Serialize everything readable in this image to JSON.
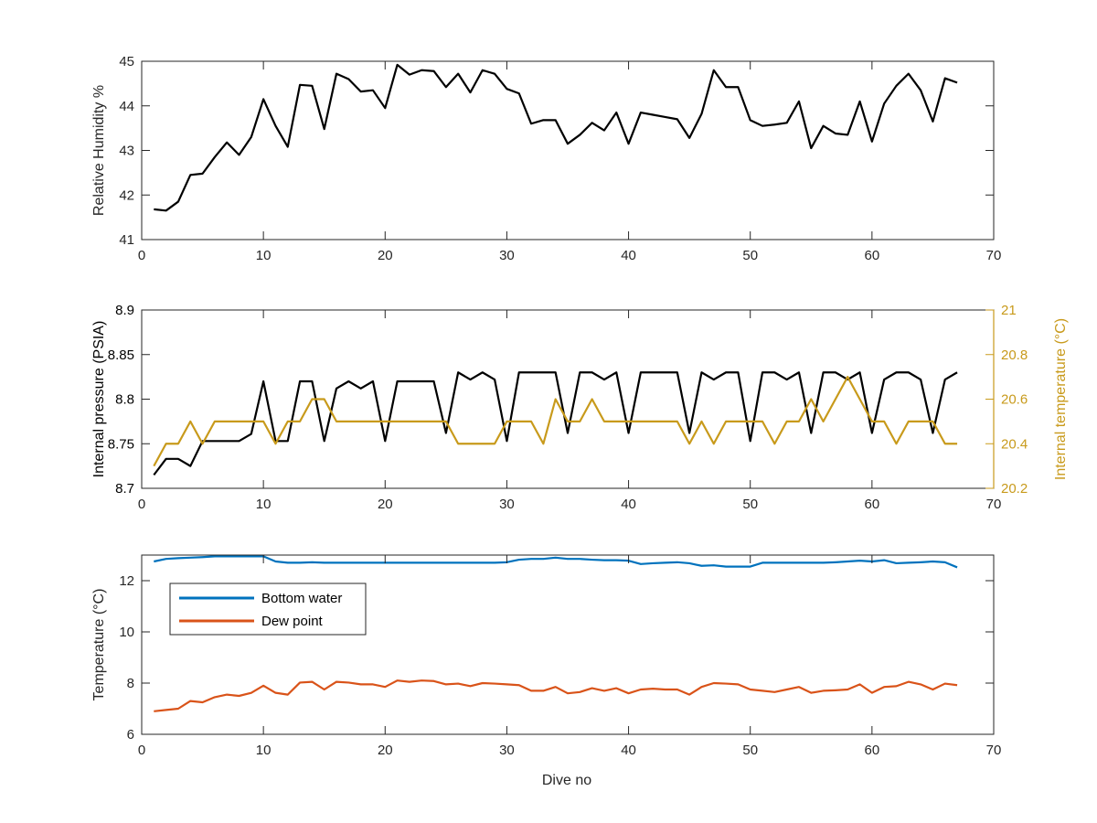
{
  "figure": {
    "xlabel": "Dive no",
    "colors": {
      "axis": "#262626",
      "black": "#000000",
      "gold": "#C89A1B",
      "blue": "#0072BD",
      "orange": "#D95319",
      "tick_text": "#262626"
    }
  },
  "chart_data": [
    {
      "type": "line",
      "ylabel": "Relative Humidity %",
      "xlim": [
        0,
        70
      ],
      "ylim": [
        41,
        45
      ],
      "xticks": [
        0,
        10,
        20,
        30,
        40,
        50,
        60,
        70
      ],
      "yticks": [
        41,
        42,
        43,
        44,
        45
      ],
      "series": [
        {
          "color": "#000000",
          "x": [
            1,
            2,
            3,
            4,
            5,
            6,
            7,
            8,
            9,
            10,
            11,
            12,
            13,
            14,
            15,
            16,
            17,
            18,
            19,
            20,
            21,
            22,
            23,
            24,
            25,
            26,
            27,
            28,
            29,
            30,
            31,
            32,
            33,
            34,
            35,
            36,
            37,
            38,
            39,
            40,
            41,
            42,
            43,
            44,
            45,
            46,
            47,
            48,
            49,
            50,
            51,
            52,
            53,
            54,
            55,
            56,
            57,
            58,
            59,
            60,
            61,
            62,
            63,
            64,
            65,
            66,
            67
          ],
          "y": [
            41.68,
            41.65,
            41.85,
            42.45,
            42.48,
            42.85,
            43.18,
            42.9,
            43.3,
            44.15,
            43.55,
            43.08,
            44.47,
            44.45,
            43.48,
            44.72,
            44.6,
            44.32,
            44.35,
            43.95,
            44.92,
            44.7,
            44.8,
            44.78,
            44.42,
            44.72,
            44.3,
            44.8,
            44.72,
            44.38,
            44.28,
            43.6,
            43.68,
            43.68,
            43.15,
            43.35,
            43.62,
            43.45,
            43.85,
            43.15,
            43.85,
            43.8,
            43.75,
            43.7,
            43.28,
            43.82,
            44.8,
            44.42,
            44.42,
            43.68,
            43.55,
            43.58,
            43.62,
            44.1,
            43.05,
            43.55,
            43.38,
            43.35,
            44.1,
            43.2,
            44.05,
            44.45,
            44.72,
            44.35,
            43.65,
            44.62,
            44.52
          ]
        }
      ]
    },
    {
      "type": "line",
      "ylabel": "Internal pressure (PSIA)",
      "ylabel_right": "Internal temperature (°C)",
      "xlim": [
        0,
        70
      ],
      "ylim": [
        8.7,
        8.9
      ],
      "ylim_right": [
        20.2,
        21
      ],
      "xticks": [
        0,
        10,
        20,
        30,
        40,
        50,
        60,
        70
      ],
      "yticks": [
        8.7,
        8.75,
        8.8,
        8.85,
        8.9
      ],
      "yticks_right": [
        20.2,
        20.4,
        20.6,
        20.8,
        21
      ],
      "series": [
        {
          "axis": "left",
          "color": "#000000",
          "x": [
            1,
            2,
            3,
            4,
            5,
            6,
            7,
            8,
            9,
            10,
            11,
            12,
            13,
            14,
            15,
            16,
            17,
            18,
            19,
            20,
            21,
            22,
            23,
            24,
            25,
            26,
            27,
            28,
            29,
            30,
            31,
            32,
            33,
            34,
            35,
            36,
            37,
            38,
            39,
            40,
            41,
            42,
            43,
            44,
            45,
            46,
            47,
            48,
            49,
            50,
            51,
            52,
            53,
            54,
            55,
            56,
            57,
            58,
            59,
            60,
            61,
            62,
            63,
            64,
            65,
            66,
            67
          ],
          "y": [
            8.715,
            8.733,
            8.733,
            8.725,
            8.753,
            8.753,
            8.753,
            8.753,
            8.761,
            8.82,
            8.753,
            8.753,
            8.82,
            8.82,
            8.753,
            8.812,
            8.82,
            8.812,
            8.82,
            8.753,
            8.82,
            8.82,
            8.82,
            8.82,
            8.762,
            8.83,
            8.822,
            8.83,
            8.822,
            8.753,
            8.83,
            8.83,
            8.83,
            8.83,
            8.762,
            8.83,
            8.83,
            8.822,
            8.83,
            8.762,
            8.83,
            8.83,
            8.83,
            8.83,
            8.762,
            8.83,
            8.822,
            8.83,
            8.83,
            8.753,
            8.83,
            8.83,
            8.822,
            8.83,
            8.762,
            8.83,
            8.83,
            8.822,
            8.83,
            8.762,
            8.822,
            8.83,
            8.83,
            8.822,
            8.762,
            8.822,
            8.83
          ]
        },
        {
          "axis": "right",
          "color": "#C89A1B",
          "x": [
            1,
            2,
            3,
            4,
            5,
            6,
            7,
            8,
            9,
            10,
            11,
            12,
            13,
            14,
            15,
            16,
            17,
            18,
            19,
            20,
            21,
            22,
            23,
            24,
            25,
            26,
            27,
            28,
            29,
            30,
            31,
            32,
            33,
            34,
            35,
            36,
            37,
            38,
            39,
            40,
            41,
            42,
            43,
            44,
            45,
            46,
            47,
            48,
            49,
            50,
            51,
            52,
            53,
            54,
            55,
            56,
            57,
            58,
            59,
            60,
            61,
            62,
            63,
            64,
            65,
            66,
            67
          ],
          "y": [
            20.3,
            20.4,
            20.4,
            20.5,
            20.4,
            20.5,
            20.5,
            20.5,
            20.5,
            20.5,
            20.4,
            20.5,
            20.5,
            20.6,
            20.6,
            20.5,
            20.5,
            20.5,
            20.5,
            20.5,
            20.5,
            20.5,
            20.5,
            20.5,
            20.5,
            20.4,
            20.4,
            20.4,
            20.4,
            20.5,
            20.5,
            20.5,
            20.4,
            20.6,
            20.5,
            20.5,
            20.6,
            20.5,
            20.5,
            20.5,
            20.5,
            20.5,
            20.5,
            20.5,
            20.4,
            20.5,
            20.4,
            20.5,
            20.5,
            20.5,
            20.5,
            20.4,
            20.5,
            20.5,
            20.6,
            20.5,
            20.6,
            20.7,
            20.6,
            20.5,
            20.5,
            20.4,
            20.5,
            20.5,
            20.5,
            20.4,
            20.4
          ]
        }
      ]
    },
    {
      "type": "line",
      "ylabel": "Temperature (°C)",
      "xlabel": "Dive no",
      "xlim": [
        0,
        70
      ],
      "ylim": [
        6,
        13
      ],
      "xticks": [
        0,
        10,
        20,
        30,
        40,
        50,
        60,
        70
      ],
      "yticks": [
        6,
        8,
        10,
        12
      ],
      "legend": "top-left",
      "series": [
        {
          "name": "Bottom water",
          "color": "#0072BD",
          "x": [
            1,
            2,
            3,
            4,
            5,
            6,
            7,
            8,
            9,
            10,
            11,
            12,
            13,
            14,
            15,
            16,
            17,
            18,
            19,
            20,
            21,
            22,
            23,
            24,
            25,
            26,
            27,
            28,
            29,
            30,
            31,
            32,
            33,
            34,
            35,
            36,
            37,
            38,
            39,
            40,
            41,
            42,
            43,
            44,
            45,
            46,
            47,
            48,
            49,
            50,
            51,
            52,
            53,
            54,
            55,
            56,
            57,
            58,
            59,
            60,
            61,
            62,
            63,
            64,
            65,
            66,
            67
          ],
          "y": [
            12.75,
            12.85,
            12.88,
            12.9,
            12.92,
            12.95,
            12.95,
            12.95,
            12.95,
            12.95,
            12.75,
            12.7,
            12.7,
            12.72,
            12.7,
            12.7,
            12.7,
            12.7,
            12.7,
            12.7,
            12.7,
            12.7,
            12.7,
            12.7,
            12.7,
            12.7,
            12.7,
            12.7,
            12.7,
            12.72,
            12.82,
            12.85,
            12.85,
            12.9,
            12.85,
            12.85,
            12.82,
            12.8,
            12.8,
            12.78,
            12.65,
            12.68,
            12.7,
            12.72,
            12.68,
            12.58,
            12.6,
            12.55,
            12.55,
            12.55,
            12.7,
            12.7,
            12.7,
            12.7,
            12.7,
            12.7,
            12.72,
            12.75,
            12.78,
            12.75,
            12.8,
            12.68,
            12.7,
            12.72,
            12.75,
            12.72,
            12.52
          ]
        },
        {
          "name": "Dew point",
          "color": "#D95319",
          "x": [
            1,
            2,
            3,
            4,
            5,
            6,
            7,
            8,
            9,
            10,
            11,
            12,
            13,
            14,
            15,
            16,
            17,
            18,
            19,
            20,
            21,
            22,
            23,
            24,
            25,
            26,
            27,
            28,
            29,
            30,
            31,
            32,
            33,
            34,
            35,
            36,
            37,
            38,
            39,
            40,
            41,
            42,
            43,
            44,
            45,
            46,
            47,
            48,
            49,
            50,
            51,
            52,
            53,
            54,
            55,
            56,
            57,
            58,
            59,
            60,
            61,
            62,
            63,
            64,
            65,
            66,
            67
          ],
          "y": [
            6.9,
            6.95,
            7.0,
            7.3,
            7.25,
            7.45,
            7.55,
            7.5,
            7.62,
            7.9,
            7.62,
            7.55,
            8.02,
            8.05,
            7.75,
            8.05,
            8.02,
            7.95,
            7.95,
            7.85,
            8.1,
            8.05,
            8.1,
            8.08,
            7.95,
            7.98,
            7.88,
            8.0,
            7.98,
            7.95,
            7.92,
            7.7,
            7.7,
            7.85,
            7.6,
            7.65,
            7.8,
            7.7,
            7.8,
            7.6,
            7.75,
            7.78,
            7.75,
            7.75,
            7.55,
            7.85,
            8.0,
            7.98,
            7.95,
            7.75,
            7.7,
            7.65,
            7.75,
            7.85,
            7.62,
            7.7,
            7.72,
            7.75,
            7.95,
            7.62,
            7.85,
            7.88,
            8.05,
            7.95,
            7.75,
            7.98,
            7.92
          ]
        }
      ]
    }
  ]
}
